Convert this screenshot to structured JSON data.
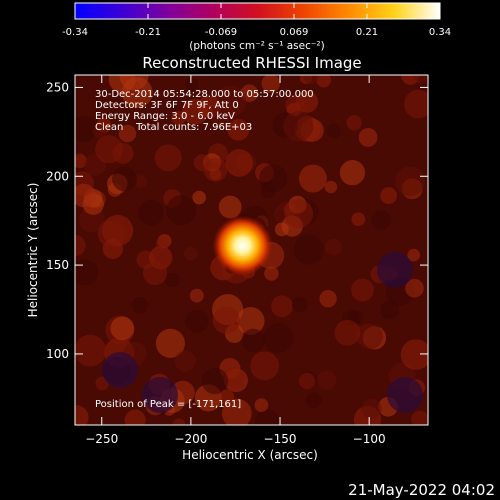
{
  "colorbar": {
    "ticks": [
      "-0.34",
      "-0.21",
      "-0.069",
      "0.069",
      "0.21",
      "0.34"
    ],
    "unit_label": "(photons cm⁻² s⁻¹ asec⁻²)",
    "colors": [
      "#0000ff",
      "#3a00d8",
      "#7d009f",
      "#b00060",
      "#d01020",
      "#ee4400",
      "#ff8a00",
      "#ffd21a",
      "#ffffff"
    ]
  },
  "title": "Reconstructed RHESSI Image",
  "info": {
    "line1": "30-Dec-2014 05:54:28.000 to 05:57:00.000",
    "line2": "Detectors: 3F 6F 7F 9F, Att 0",
    "line3": "Energy Range: 3.0 - 6.0 keV",
    "line4": "Clean    Total counts: 7.96E+03"
  },
  "peak_label": "Position of Peak = [-171,161]",
  "footer_date": "21-May-2022 04:02",
  "chart_data": {
    "type": "heatmap",
    "xlabel": "Heliocentric X (arcsec)",
    "ylabel": "Heliocentric Y (arcsec)",
    "xlim": [
      -265,
      -67
    ],
    "ylim": [
      60,
      257
    ],
    "xticks": [
      -250,
      -200,
      -150,
      -100
    ],
    "yticks": [
      100,
      150,
      200,
      250
    ],
    "peak": {
      "x": -171,
      "y": 161
    },
    "vmin": -0.34,
    "vmax": 0.34
  }
}
